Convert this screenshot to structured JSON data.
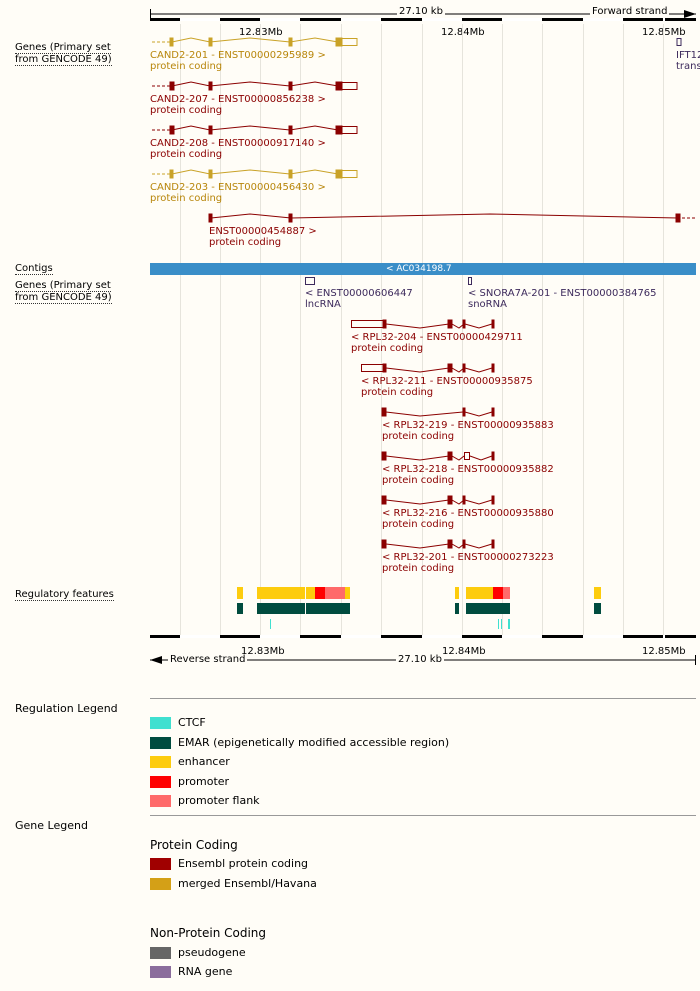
{
  "ruler_top": {
    "span_label": "27.10 kb",
    "strand_label": "Forward strand",
    "ticks": [
      "12.83Mb",
      "12.84Mb",
      "12.85Mb"
    ]
  },
  "ruler_bottom": {
    "span_label": "27.10 kb",
    "strand_label": "Reverse strand",
    "ticks": [
      "12.83Mb",
      "12.84Mb",
      "12.85Mb"
    ]
  },
  "tracks": {
    "genes_forward": "Genes (Primary set from GENCODE 49)",
    "contigs": "Contigs",
    "genes_reverse": "Genes (Primary set from GENCODE 49)",
    "regulatory": "Regulatory features"
  },
  "contig": {
    "label": "< AC034198.7"
  },
  "forward_transcripts": [
    {
      "name": "CAND2-201 - ENST00000295989 >",
      "biotype": "protein coding",
      "color": "#b8860b"
    },
    {
      "name": "CAND2-207 - ENST00000856238 >",
      "biotype": "protein coding",
      "color": "#8b0000"
    },
    {
      "name": "CAND2-208 - ENST00000917140 >",
      "biotype": "protein coding",
      "color": "#8b0000"
    },
    {
      "name": "CAND2-203 - ENST00000456430 >",
      "biotype": "protein coding",
      "color": "#b8860b"
    },
    {
      "name": "ENST00000454887 >",
      "biotype": "protein coding",
      "color": "#8b0000"
    }
  ],
  "ift_partial": {
    "name": "IFT12",
    "biotype": "trans"
  },
  "reverse_genes": [
    {
      "name": "< ENST00000606447",
      "biotype": "lncRNA",
      "color": "#3d2a5c"
    },
    {
      "name": "< SNORA7A-201 - ENST00000384765",
      "biotype": "snoRNA",
      "color": "#3d2a5c"
    },
    {
      "name": "< RPL32-204 - ENST00000429711",
      "biotype": "protein coding",
      "color": "#8b0000"
    },
    {
      "name": "< RPL32-211 - ENST00000935875",
      "biotype": "protein coding",
      "color": "#8b0000"
    },
    {
      "name": "< RPL32-219 - ENST00000935883",
      "biotype": "protein coding",
      "color": "#8b0000"
    },
    {
      "name": "< RPL32-218 - ENST00000935882",
      "biotype": "protein coding",
      "color": "#8b0000"
    },
    {
      "name": "< RPL32-216 - ENST00000935880",
      "biotype": "protein coding",
      "color": "#8b0000"
    },
    {
      "name": "< RPL32-201 - ENST00000273223",
      "biotype": "protein coding",
      "color": "#8b0000"
    }
  ],
  "regulation_legend": {
    "title": "Regulation Legend",
    "items": [
      {
        "label": "CTCF",
        "color": "#40e0d0"
      },
      {
        "label": "EMAR (epigenetically modified accessible region)",
        "color": "#004c3f"
      },
      {
        "label": "enhancer",
        "color": "#fdcc0d"
      },
      {
        "label": "promoter",
        "color": "#ff0000"
      },
      {
        "label": "promoter flank",
        "color": "#ff6a6a"
      }
    ]
  },
  "gene_legend": {
    "title": "Gene Legend",
    "protein_coding": {
      "heading": "Protein Coding",
      "items": [
        {
          "label": "Ensembl protein coding",
          "color": "#a00000"
        },
        {
          "label": "merged Ensembl/Havana",
          "color": "#d4a017"
        }
      ]
    },
    "non_protein_coding": {
      "heading": "Non-Protein Coding",
      "items": [
        {
          "label": "pseudogene",
          "color": "#666666"
        },
        {
          "label": "RNA gene",
          "color": "#8b6d9c"
        }
      ]
    }
  }
}
